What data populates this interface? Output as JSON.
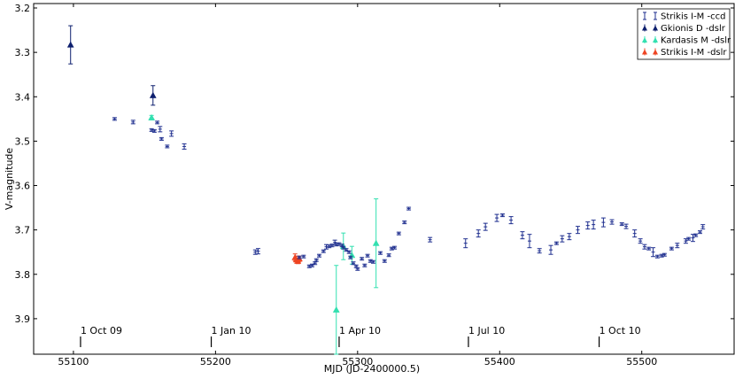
{
  "chart_data": {
    "type": "scatter",
    "title": "",
    "xlabel": "MJD (JD-2400000.5)",
    "ylabel": "V-magnitude",
    "xlim": [
      55072,
      55565
    ],
    "ylim": [
      3.98,
      3.19
    ],
    "y_inverted": true,
    "x_ticks": [
      55100,
      55200,
      55300,
      55400,
      55500
    ],
    "y_ticks": [
      3.2,
      3.3,
      3.4,
      3.5,
      3.6,
      3.7,
      3.8,
      3.9
    ],
    "date_markers": [
      {
        "label": "1 Oct 09",
        "x": 55105
      },
      {
        "label": "1 Jan 10",
        "x": 55197
      },
      {
        "label": "1 Apr 10",
        "x": 55287
      },
      {
        "label": "1 Jul 10",
        "x": 55378
      },
      {
        "label": "1 Oct 10",
        "x": 55470
      }
    ],
    "grid": false,
    "legend_position": "top-right",
    "series": [
      {
        "name": "Strikis I-M -ccd",
        "color": "#1f2f8f",
        "marker": "errorbar",
        "points": [
          [
            55129,
            3.45,
            0.003
          ],
          [
            55142,
            3.457,
            0.004
          ],
          [
            55155,
            3.475,
            0.003
          ],
          [
            55157,
            3.477,
            0.003
          ],
          [
            55159,
            3.458,
            0.003
          ],
          [
            55161,
            3.473,
            0.006
          ],
          [
            55162,
            3.495,
            0.003
          ],
          [
            55166,
            3.512,
            0.003
          ],
          [
            55169,
            3.483,
            0.006
          ],
          [
            55178,
            3.512,
            0.006
          ],
          [
            55228,
            3.75,
            0.005
          ],
          [
            55230,
            3.748,
            0.006
          ],
          [
            55259,
            3.762,
            0.003
          ],
          [
            55262,
            3.76,
            0.003
          ],
          [
            55266,
            3.782,
            0.003
          ],
          [
            55268,
            3.78,
            0.003
          ],
          [
            55270,
            3.775,
            0.003
          ],
          [
            55271,
            3.768,
            0.003
          ],
          [
            55273,
            3.758,
            0.003
          ],
          [
            55276,
            3.748,
            0.003
          ],
          [
            55278,
            3.738,
            0.005
          ],
          [
            55280,
            3.737,
            0.003
          ],
          [
            55282,
            3.735,
            0.003
          ],
          [
            55284,
            3.728,
            0.005
          ],
          [
            55285,
            3.733,
            0.003
          ],
          [
            55287,
            3.732,
            0.003
          ],
          [
            55289,
            3.735,
            0.003
          ],
          [
            55290,
            3.74,
            0.003
          ],
          [
            55292,
            3.745,
            0.003
          ],
          [
            55294,
            3.75,
            0.003
          ],
          [
            55295,
            3.762,
            0.003
          ],
          [
            55297,
            3.775,
            0.003
          ],
          [
            55299,
            3.782,
            0.003
          ],
          [
            55300,
            3.788,
            0.003
          ],
          [
            55303,
            3.765,
            0.003
          ],
          [
            55305,
            3.78,
            0.003
          ],
          [
            55307,
            3.758,
            0.003
          ],
          [
            55309,
            3.77,
            0.003
          ],
          [
            55311,
            3.772,
            0.003
          ],
          [
            55316,
            3.752,
            0.003
          ],
          [
            55319,
            3.77,
            0.003
          ],
          [
            55322,
            3.757,
            0.003
          ],
          [
            55324,
            3.742,
            0.003
          ],
          [
            55326,
            3.74,
            0.003
          ],
          [
            55329,
            3.708,
            0.003
          ],
          [
            55333,
            3.683,
            0.003
          ],
          [
            55336,
            3.652,
            0.003
          ],
          [
            55351,
            3.722,
            0.005
          ],
          [
            55376,
            3.73,
            0.01
          ],
          [
            55385,
            3.708,
            0.008
          ],
          [
            55390,
            3.693,
            0.008
          ],
          [
            55398,
            3.673,
            0.008
          ],
          [
            55402,
            3.667,
            0.003
          ],
          [
            55408,
            3.678,
            0.008
          ],
          [
            55416,
            3.712,
            0.008
          ],
          [
            55421,
            3.725,
            0.015
          ],
          [
            55428,
            3.747,
            0.005
          ],
          [
            55436,
            3.745,
            0.01
          ],
          [
            55440,
            3.73,
            0.003
          ],
          [
            55444,
            3.72,
            0.007
          ],
          [
            55449,
            3.715,
            0.007
          ],
          [
            55455,
            3.7,
            0.008
          ],
          [
            55462,
            3.69,
            0.008
          ],
          [
            55466,
            3.688,
            0.01
          ],
          [
            55473,
            3.683,
            0.01
          ],
          [
            55479,
            3.682,
            0.005
          ],
          [
            55486,
            3.687,
            0.003
          ],
          [
            55489,
            3.692,
            0.005
          ],
          [
            55495,
            3.708,
            0.008
          ],
          [
            55499,
            3.725,
            0.005
          ],
          [
            55502,
            3.738,
            0.005
          ],
          [
            55505,
            3.742,
            0.003
          ],
          [
            55508,
            3.75,
            0.01
          ],
          [
            55511,
            3.76,
            0.003
          ],
          [
            55514,
            3.758,
            0.003
          ],
          [
            55516,
            3.756,
            0.003
          ],
          [
            55521,
            3.742,
            0.003
          ],
          [
            55525,
            3.735,
            0.005
          ],
          [
            55531,
            3.725,
            0.005
          ],
          [
            55533,
            3.72,
            0.003
          ],
          [
            55536,
            3.718,
            0.008
          ],
          [
            55538,
            3.712,
            0.003
          ],
          [
            55541,
            3.705,
            0.003
          ],
          [
            55543,
            3.693,
            0.005
          ]
        ]
      },
      {
        "name": "Gkionis D -dslr",
        "color": "#0d1f6e",
        "marker": "triangle",
        "points": [
          [
            55098,
            3.283,
            0.043
          ],
          [
            55156,
            3.397,
            0.022
          ]
        ]
      },
      {
        "name": "Kardasis M -dslr",
        "color": "#33e0b0",
        "marker": "triangle",
        "points": [
          [
            55155,
            3.447,
            0.005
          ],
          [
            55285,
            3.88,
            0.1
          ],
          [
            55290,
            3.737,
            0.03
          ],
          [
            55296,
            3.757,
            0.02
          ],
          [
            55313,
            3.73,
            0.1
          ]
        ]
      },
      {
        "name": "Strikis I-M -dslr",
        "color": "#ee4422",
        "marker": "triangle",
        "points": [
          [
            55256,
            3.762,
            0.008
          ],
          [
            55257,
            3.767,
            0.008
          ],
          [
            55258,
            3.77,
            0.006
          ],
          [
            55259,
            3.765,
            0.006
          ]
        ]
      }
    ]
  }
}
